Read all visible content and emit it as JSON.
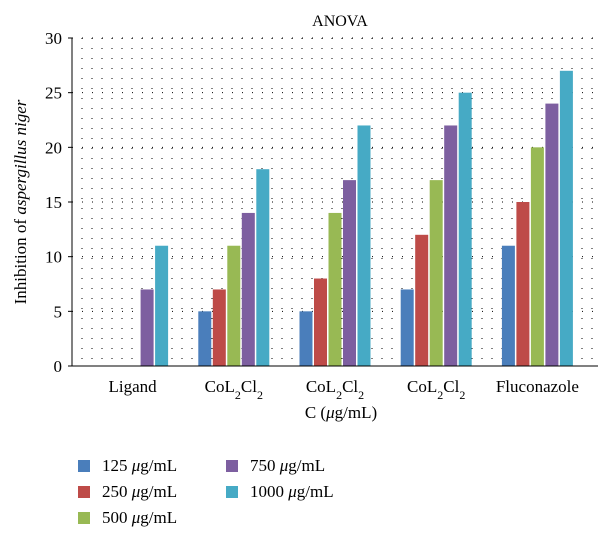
{
  "chart_data": {
    "type": "bar",
    "title": "ANOVA",
    "xlabel": "C (μg/mL)",
    "ylabel_prefix": "Inhibition of ",
    "ylabel_italic": "aspergillus niger",
    "ylim": [
      0,
      30
    ],
    "yticks": [
      "0",
      "5",
      "10",
      "15",
      "20",
      "25",
      "30"
    ],
    "grid": true,
    "categories": [
      {
        "name": "Ligand",
        "formula": false
      },
      {
        "name": "CoL2Cl2",
        "formula": true
      },
      {
        "name": "CoL2Cl2",
        "formula": true
      },
      {
        "name": "CoL2Cl2",
        "formula": true
      },
      {
        "name": "Fluconazole",
        "formula": false
      }
    ],
    "series": [
      {
        "name": "125 μg/mL",
        "value_label": "125",
        "unit": "g/mL",
        "color": "#4a7ebb",
        "values": [
          0,
          5,
          5,
          7,
          11
        ]
      },
      {
        "name": "250 μg/mL",
        "value_label": "250",
        "unit": "g/mL",
        "color": "#be4b48",
        "values": [
          0,
          7,
          8,
          12,
          15
        ]
      },
      {
        "name": "500 μg/mL",
        "value_label": "500",
        "unit": "g/mL",
        "color": "#98b954",
        "values": [
          0,
          11,
          14,
          17,
          20
        ]
      },
      {
        "name": "750 μg/mL",
        "value_label": "750",
        "unit": "g/mL",
        "color": "#7d5fa0",
        "values": [
          7,
          14,
          17,
          22,
          24
        ]
      },
      {
        "name": "1000 μg/mL",
        "value_label": "1000",
        "unit": "g/mL",
        "color": "#46aac5",
        "values": [
          11,
          18,
          22,
          25,
          27
        ]
      }
    ],
    "legend_position": "bottom-left"
  }
}
